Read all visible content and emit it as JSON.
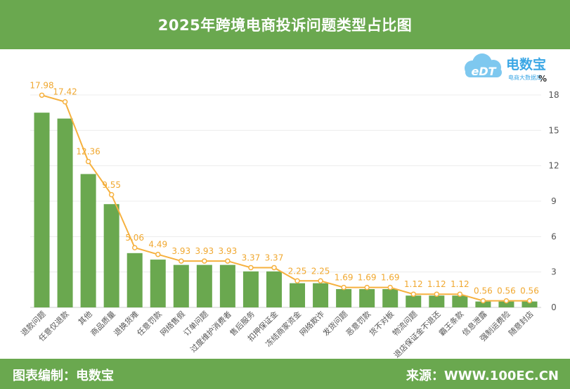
{
  "header": {
    "title": "2025年跨境电商投诉问题类型占比图"
  },
  "footer": {
    "left_text": "图表编制：电数宝",
    "right_text": "来源：WWW.100EC.CN"
  },
  "logo": {
    "brand": "电数宝",
    "sub": "电商大数据库",
    "mark": "eDT",
    "icon": "cloud-logo-icon"
  },
  "colors": {
    "header_bg": "#6aa84f",
    "bar": "#6aa84f",
    "line": "#f6b13f",
    "label": "#f0a830",
    "axis_text": "#555555"
  },
  "chart_data": {
    "type": "bar",
    "unit": "%",
    "categories": [
      "退款问题",
      "任意仅退款",
      "其他",
      "商品质量",
      "退换货难",
      "任意罚款",
      "网络售假",
      "订单问题",
      "过度维护消费者",
      "售后服务",
      "扣押保证金",
      "冻结商家资金",
      "网络欺诈",
      "发货问题",
      "恶意罚款",
      "货不对板",
      "物流问题",
      "退店保证金不退还",
      "霸王条款",
      "信息泄露",
      "强制运费险",
      "随意封店"
    ],
    "values": [
      16.5,
      16.0,
      11.3,
      8.75,
      4.6,
      4.05,
      3.6,
      3.6,
      3.6,
      3.05,
      3.05,
      2.05,
      2.05,
      1.55,
      1.55,
      1.55,
      1.0,
      1.0,
      1.0,
      0.5,
      0.5,
      0.5
    ],
    "line_values": [
      17.98,
      17.42,
      12.36,
      9.55,
      5.06,
      4.49,
      3.93,
      3.93,
      3.93,
      3.37,
      3.37,
      2.25,
      2.25,
      1.69,
      1.69,
      1.69,
      1.12,
      1.12,
      1.12,
      0.56,
      0.56,
      0.56
    ],
    "line_labels": [
      "17.98",
      "17.42",
      "12.36",
      "9.55",
      "5.06",
      "4.49",
      "3.93",
      "3.93",
      "3.93",
      "3.37",
      "3.37",
      "2.25",
      "2.25",
      "1.69",
      "1.69",
      "1.69",
      "1.12",
      "1.12",
      "1.12",
      "0.56",
      "0.56",
      "0.56"
    ],
    "yticks": [
      "0",
      "3",
      "6",
      "9",
      "12",
      "15",
      "18"
    ],
    "ylim": [
      0,
      18
    ],
    "grid": true
  }
}
